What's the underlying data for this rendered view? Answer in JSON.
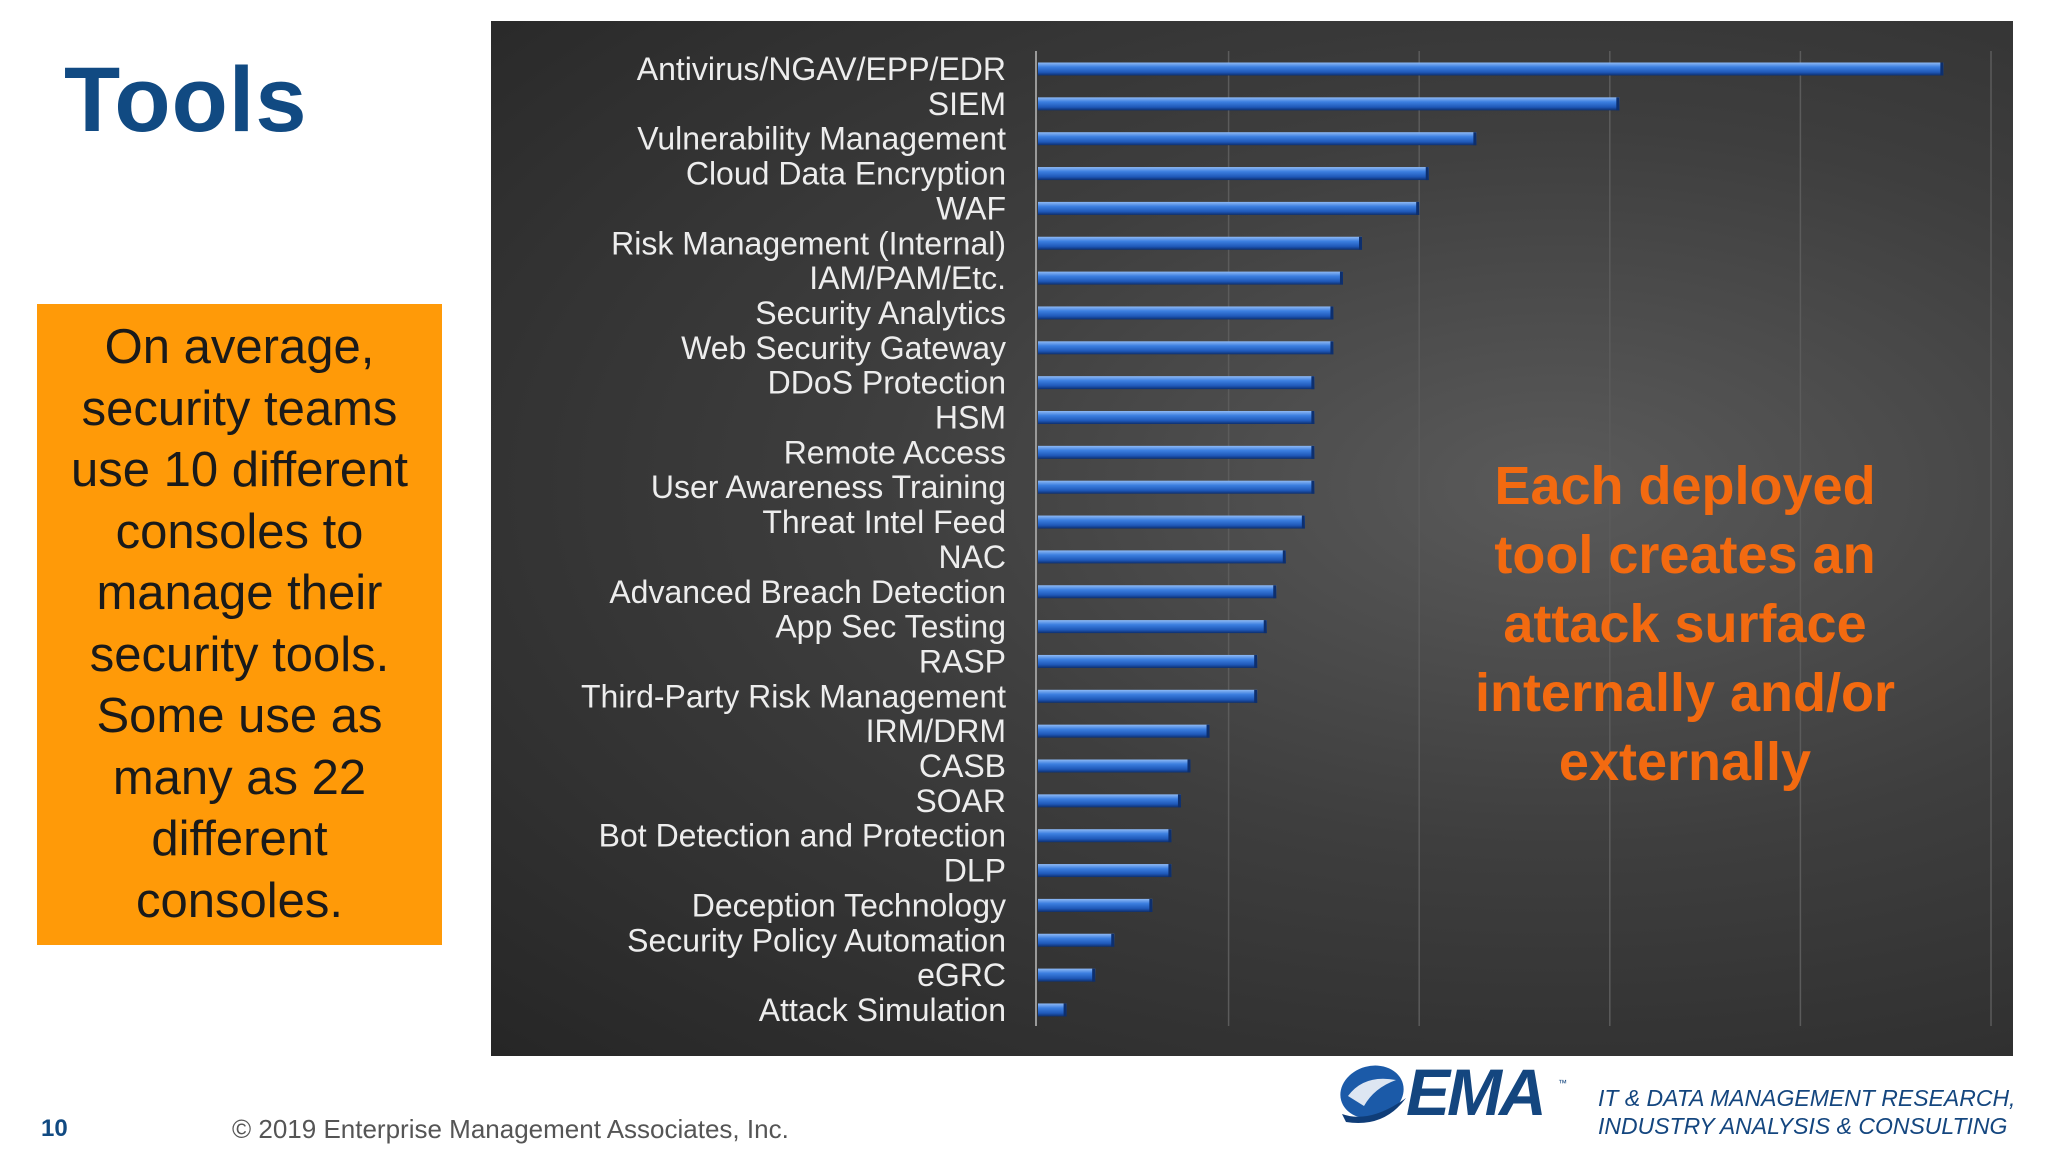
{
  "slide": {
    "title": "Tools",
    "page_number": "10",
    "copyright": "© 2019 Enterprise Management Associates, Inc."
  },
  "callout": {
    "text": "On average, security teams use 10 different consoles to manage their security tools. Some use as many as 22 different consoles.",
    "background_color": "#ff9a08"
  },
  "annotation": {
    "text": "Each deployed tool creates an attack surface internally and/or externally",
    "color": "#f36a10"
  },
  "branding": {
    "logo_text": "EMA",
    "logo_tm": "™",
    "tagline_line1": "IT & DATA MANAGEMENT RESEARCH,",
    "tagline_line2": "INDUSTRY ANALYSIS & CONSULTING",
    "brand_color": "#14467f"
  },
  "chart_data": {
    "type": "bar",
    "orientation": "horizontal",
    "categories": [
      "Antivirus/NGAV/EPP/EDR",
      "SIEM",
      "Vulnerability Management",
      "Cloud Data Encryption",
      "WAF",
      "Risk Management (Internal)",
      "IAM/PAM/Etc.",
      "Security Analytics",
      "Web Security Gateway",
      "DDoS Protection",
      "HSM",
      "Remote Access",
      "User Awareness Training",
      "Threat Intel Feed",
      "NAC",
      "Advanced Breach Detection",
      "App Sec Testing",
      "RASP",
      "Third-Party Risk Management",
      "IRM/DRM",
      "CASB",
      "SOAR",
      "Bot Detection and Protection",
      "DLP",
      "Deception Technology",
      "Security Policy Automation",
      "eGRC",
      "Attack Simulation"
    ],
    "values": [
      95,
      61,
      46,
      41,
      40,
      34,
      32,
      31,
      31,
      29,
      29,
      29,
      29,
      28,
      26,
      25,
      24,
      23,
      23,
      18,
      16,
      15,
      14,
      14,
      12,
      8,
      6,
      3
    ],
    "xlim": [
      0,
      100
    ],
    "grid": true,
    "legend": "none",
    "bar_color": "#2f6fd6",
    "value_axis_labels_visible": false
  }
}
